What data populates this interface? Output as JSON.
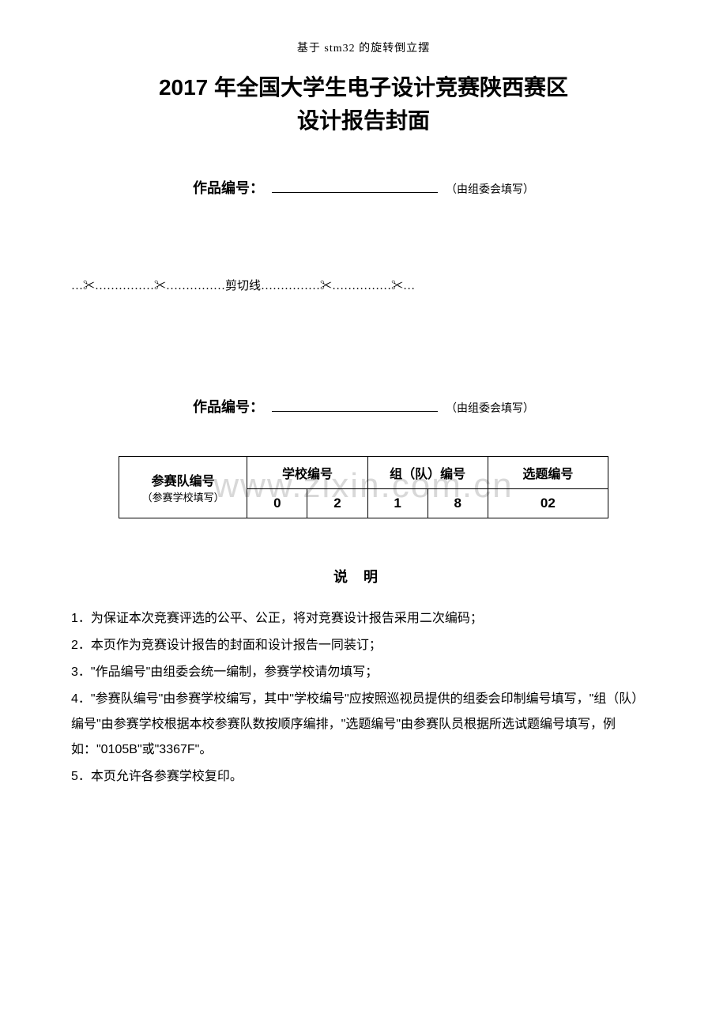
{
  "header": "基于 stm32 的旋转倒立摆",
  "title_line1": "2017 年全国大学生电子设计竞赛陕西赛区",
  "title_line2": "设计报告封面",
  "work_number": {
    "label": "作品编号：",
    "note": "（由组委会填写）"
  },
  "cut_line": {
    "scissors": "✂",
    "dots": "……………",
    "prefix_dots": "…",
    "text": "剪切线"
  },
  "watermark": "www.zixin.com.cn",
  "team_table": {
    "row_label": "参赛队编号",
    "row_label_sub": "（参赛学校填写）",
    "col1": "学校编号",
    "col2": "组（队）编号",
    "col3": "选题编号",
    "school_code_1": "0",
    "school_code_2": "2",
    "team_code_1": "1",
    "team_code_2": "8",
    "topic_code": "02"
  },
  "instructions": {
    "title": "说明",
    "item1": "1．为保证本次竞赛评选的公平、公正，将对竞赛设计报告采用二次编码；",
    "item2": "2．本页作为竞赛设计报告的封面和设计报告一同装订；",
    "item3": "3．\"作品编号\"由组委会统一编制，参赛学校请勿填写；",
    "item4": "4．\"参赛队编号\"由参赛学校编写，其中\"学校编号\"应按照巡视员提供的组委会印制编号填写，\"组（队）编号\"由参赛学校根据本校参赛队数按顺序编排，\"选题编号\"由参赛队员根据所选试题编号填写，例如：\"0105B\"或\"3367F\"。",
    "item5": "5．本页允许各参赛学校复印。"
  },
  "colors": {
    "text": "#000000",
    "background": "#ffffff",
    "watermark": "#d8d8d8",
    "border": "#000000"
  }
}
